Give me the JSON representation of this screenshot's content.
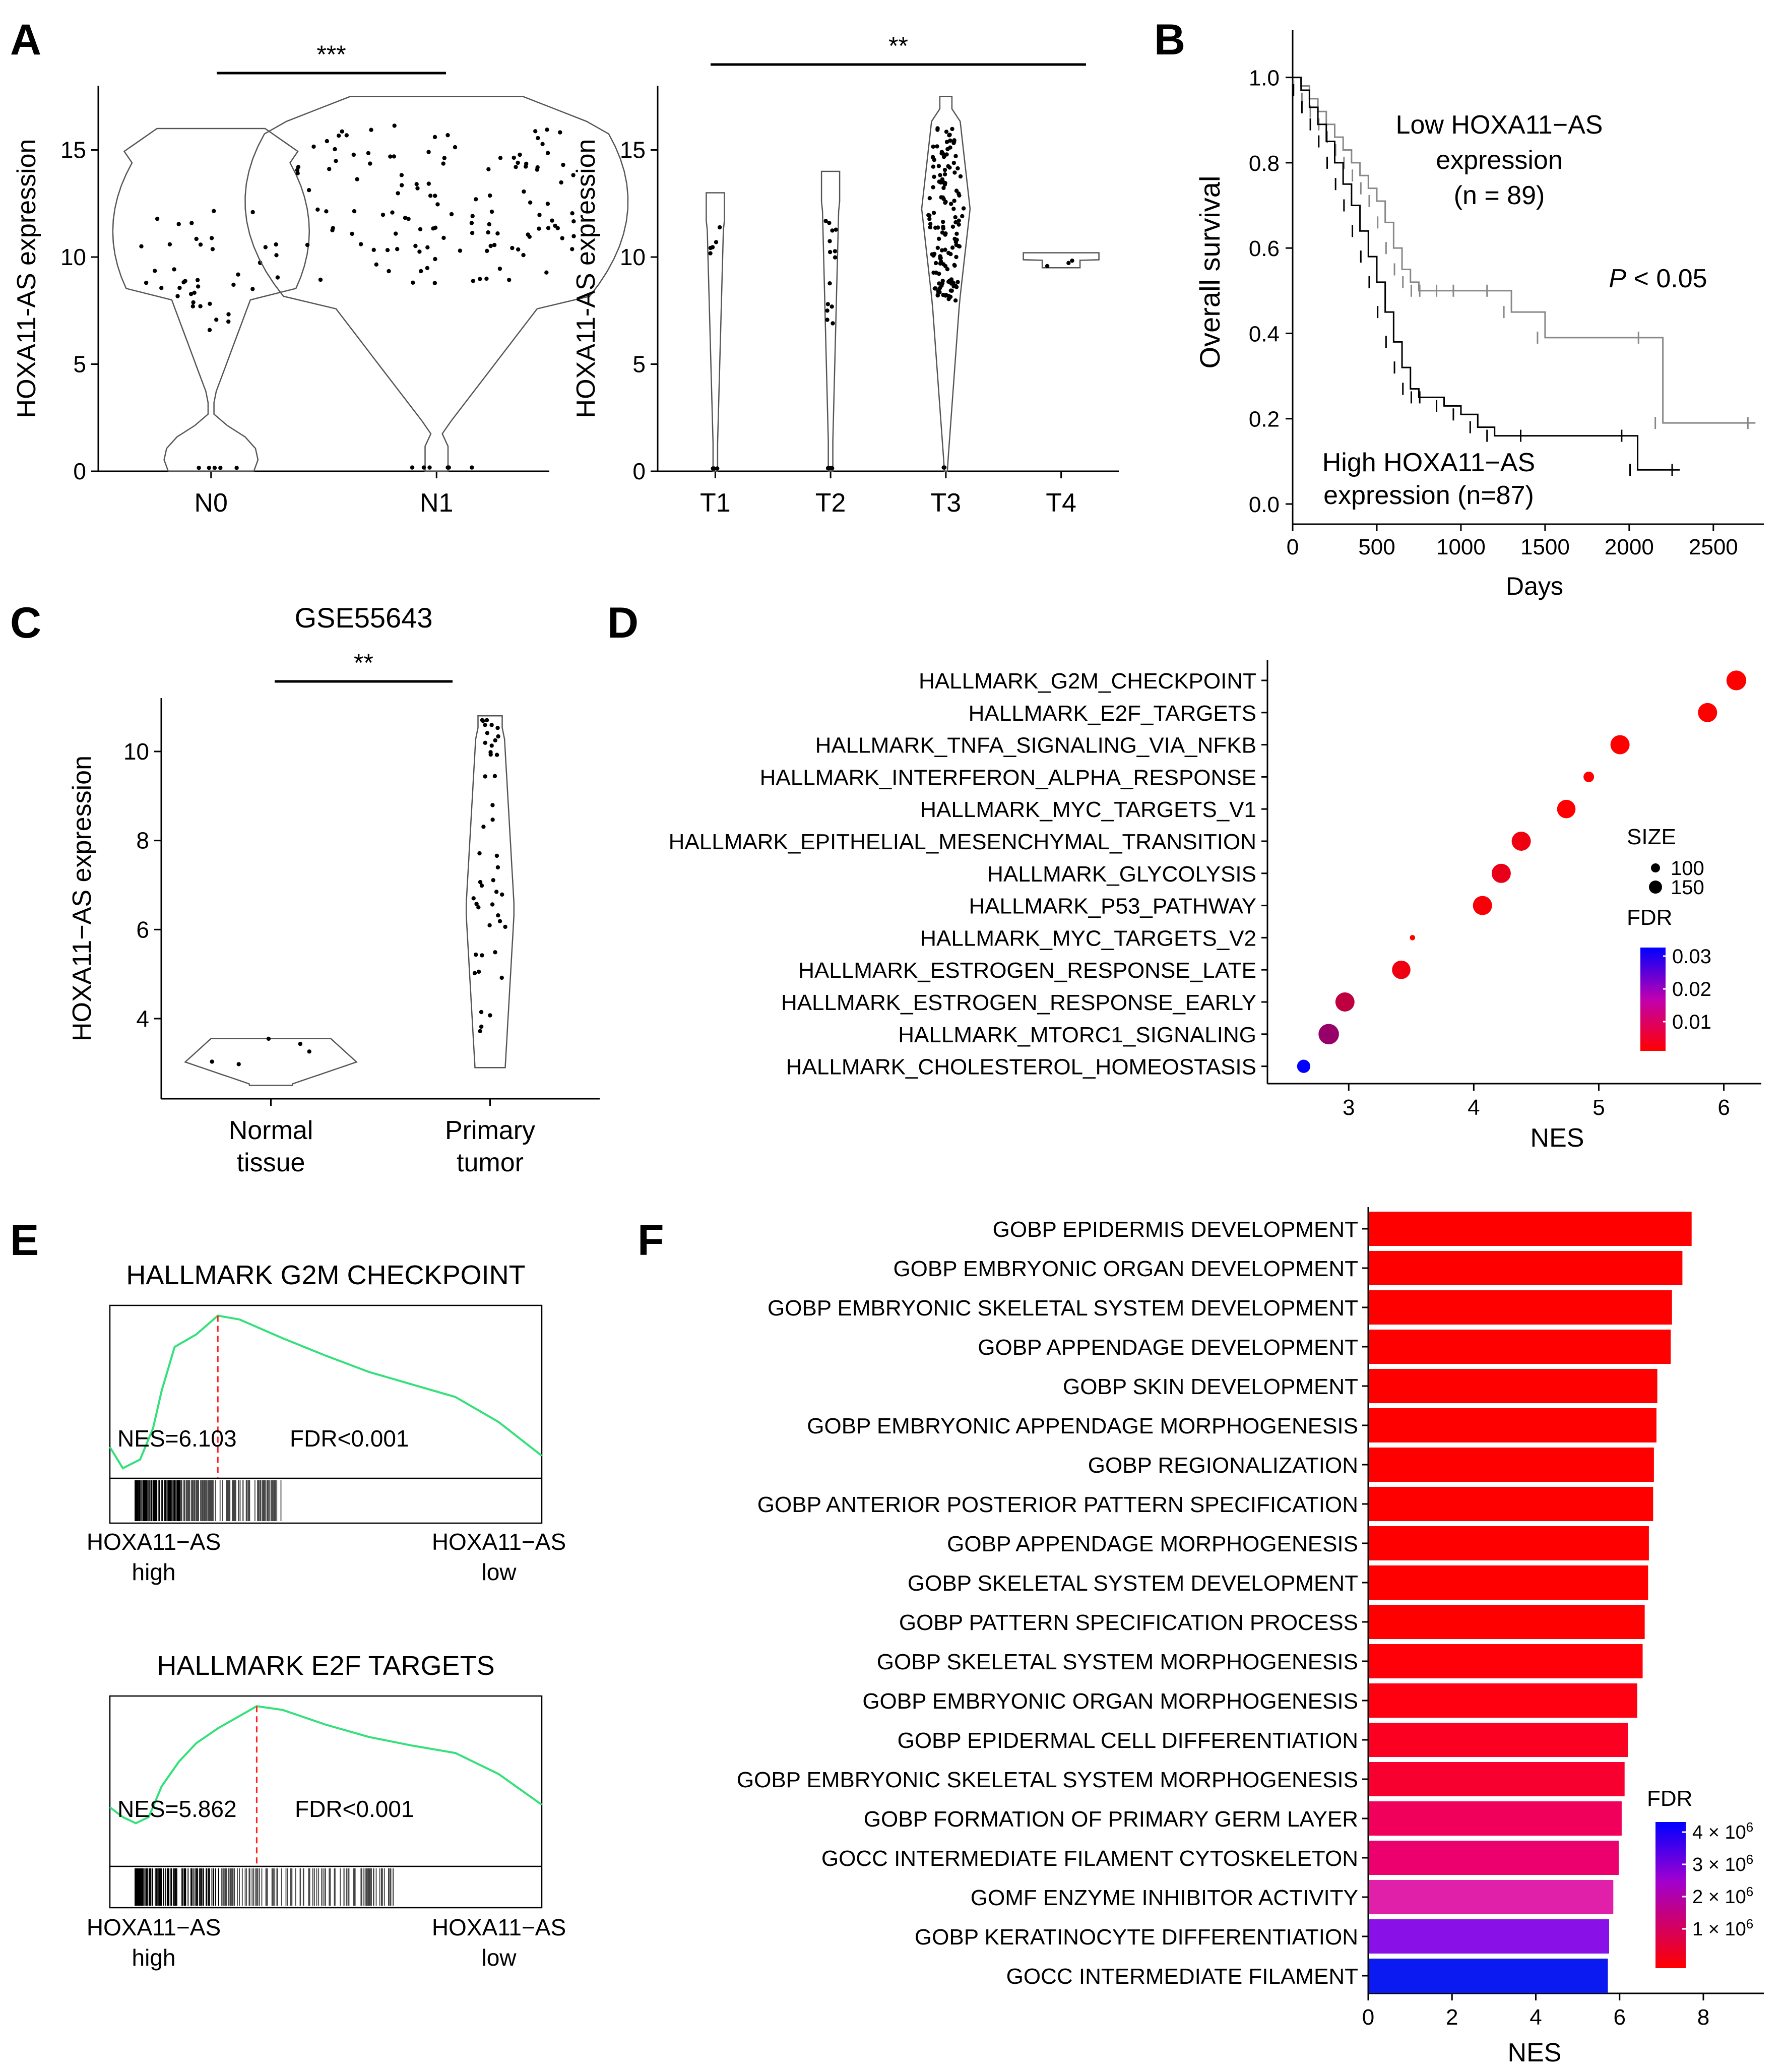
{
  "panel_letters": {
    "A": "A",
    "B": "B",
    "C": "C",
    "D": "D",
    "E": "E",
    "F": "F"
  },
  "chart_data": [
    {
      "id": "A1",
      "type": "violin",
      "ylabel": "HOXA11-AS  expression",
      "categories": [
        "N0",
        "N1"
      ],
      "yticks": [
        "0",
        "5",
        "10",
        "15"
      ],
      "ylim": [
        0,
        18
      ],
      "significance": "***",
      "groups": [
        {
          "name": "N0",
          "min": 0,
          "max": 16,
          "n_points": 45
        },
        {
          "name": "N1",
          "min": 0,
          "max": 17.5,
          "n_points": 130
        }
      ]
    },
    {
      "id": "A2",
      "type": "violin",
      "ylabel": "HOXA11-AS  expression",
      "categories": [
        "T1",
        "T2",
        "T3",
        "T4"
      ],
      "yticks": [
        "0",
        "5",
        "10",
        "15"
      ],
      "ylim": [
        0,
        18
      ],
      "significance": "**",
      "groups": [
        {
          "name": "T1",
          "min": 0,
          "max": 13,
          "n_points": 8
        },
        {
          "name": "T2",
          "min": 0,
          "max": 14,
          "n_points": 24
        },
        {
          "name": "T3",
          "min": 0,
          "max": 17.5,
          "n_points": 140
        },
        {
          "name": "T4",
          "min": 9.5,
          "max": 10.2,
          "n_points": 3
        }
      ]
    },
    {
      "id": "B",
      "type": "line",
      "subtype": "kaplan-meier",
      "xlabel": "Days",
      "ylabel": "Overall survival",
      "xticks": [
        "0",
        "500",
        "1000",
        "1500",
        "2000",
        "2500"
      ],
      "yticks": [
        "0.0",
        "0.2",
        "0.4",
        "0.6",
        "0.8",
        "1.0"
      ],
      "xlim": [
        0,
        2800
      ],
      "ylim": [
        0,
        1
      ],
      "series": [
        {
          "name": "Low HOXA11-AS expression (n = 89)",
          "label_lines": [
            "Low HOXA11−AS",
            "expression",
            "(n = 89)"
          ],
          "color": "#888888",
          "x": [
            0,
            50,
            100,
            150,
            200,
            250,
            300,
            350,
            400,
            450,
            500,
            550,
            600,
            650,
            700,
            750,
            800,
            900,
            1000,
            1200,
            1300,
            1500,
            2100,
            2200,
            2750
          ],
          "y": [
            1.0,
            0.98,
            0.95,
            0.92,
            0.89,
            0.86,
            0.83,
            0.8,
            0.77,
            0.74,
            0.71,
            0.66,
            0.6,
            0.55,
            0.52,
            0.5,
            0.5,
            0.5,
            0.5,
            0.5,
            0.45,
            0.39,
            0.39,
            0.19,
            0.19
          ]
        },
        {
          "name": "High HOXA11-AS expression (n=87)",
          "label_lines": [
            "High HOXA11−AS",
            "expression (n=87)"
          ],
          "color": "#000000",
          "x": [
            0,
            50,
            100,
            150,
            200,
            250,
            300,
            350,
            400,
            450,
            500,
            550,
            600,
            650,
            700,
            750,
            800,
            900,
            1000,
            1100,
            1200,
            1400,
            2000,
            2050,
            2300
          ],
          "y": [
            1.0,
            0.97,
            0.93,
            0.89,
            0.85,
            0.8,
            0.75,
            0.7,
            0.64,
            0.58,
            0.52,
            0.45,
            0.38,
            0.32,
            0.27,
            0.25,
            0.25,
            0.23,
            0.21,
            0.18,
            0.16,
            0.16,
            0.16,
            0.08,
            0.08
          ]
        }
      ],
      "annotation": {
        "italic": "P",
        "rest": " < 0.05"
      }
    },
    {
      "id": "C",
      "type": "violin",
      "title": "GSE55643",
      "ylabel": "HOXA11−AS  expression",
      "categories": [
        [
          "Normal",
          "tissue"
        ],
        [
          "Primary",
          "tumor"
        ]
      ],
      "yticks": [
        "4",
        "6",
        "8",
        "10"
      ],
      "ylim": [
        2.2,
        11.2
      ],
      "significance": "**",
      "groups": [
        {
          "name": "Normal tissue",
          "min": 2.5,
          "max": 3.55,
          "n_points": 5
        },
        {
          "name": "Primary tumor",
          "min": 2.9,
          "max": 10.8,
          "n_points": 45
        }
      ]
    },
    {
      "id": "D",
      "type": "scatter",
      "subtype": "dot-plot",
      "xlabel": "NES",
      "ylabel": "",
      "xticks": [
        "3",
        "4",
        "5",
        "6"
      ],
      "xlim": [
        2.35,
        6.3
      ],
      "categories": [
        "HALLMARK_G2M_CHECKPOINT",
        "HALLMARK_E2F_TARGETS",
        "HALLMARK_TNFA_SIGNALING_VIA_NFKB",
        "HALLMARK_INTERFERON_ALPHA_RESPONSE",
        "HALLMARK_MYC_TARGETS_V1",
        "HALLMARK_EPITHELIAL_MESENCHYMAL_TRANSITION",
        "HALLMARK_GLYCOLYSIS",
        "HALLMARK_P53_PATHWAY",
        "HALLMARK_MYC_TARGETS_V2",
        "HALLMARK_ESTROGEN_RESPONSE_LATE",
        "HALLMARK_ESTROGEN_RESPONSE_EARLY",
        "HALLMARK_MTORC1_SIGNALING",
        "HALLMARK_CHOLESTEROL_HOMEOSTASIS"
      ],
      "nes": [
        6.1,
        5.87,
        5.17,
        4.92,
        4.74,
        4.38,
        4.22,
        4.07,
        3.51,
        3.42,
        2.97,
        2.84,
        2.64
      ],
      "size": [
        170,
        165,
        165,
        100,
        160,
        165,
        165,
        165,
        60,
        160,
        165,
        175,
        120
      ],
      "fdr": [
        0.001,
        0.001,
        0.001,
        0.001,
        0.001,
        0.003,
        0.004,
        0.002,
        0.001,
        0.003,
        0.009,
        0.014,
        0.033
      ],
      "size_legend": {
        "title": "SIZE",
        "labels": [
          "100",
          "150"
        ]
      },
      "fdr_legend": {
        "title": "FDR",
        "labels": [
          "0.03",
          "0.02",
          "0.01"
        ],
        "colors": [
          "#0000ff",
          "#ff0000"
        ]
      }
    },
    {
      "id": "E1",
      "type": "line",
      "subtype": "gsea-enrichment",
      "title": "HALLMARK G2M CHECKPOINT",
      "nes_label": "NES=6.103",
      "fdr_label": "FDR<0.001",
      "left_label": [
        "HOXA11−AS",
        "high"
      ],
      "right_label": [
        "HOXA11−AS",
        "low"
      ],
      "color": "#33e07a",
      "x": [
        0,
        0.03,
        0.07,
        0.1,
        0.12,
        0.15,
        0.2,
        0.25,
        0.3,
        0.4,
        0.5,
        0.6,
        0.7,
        0.8,
        0.9,
        1.0
      ],
      "y": [
        -0.05,
        -0.22,
        -0.15,
        0.1,
        0.4,
        0.75,
        0.85,
        1.0,
        0.97,
        0.82,
        0.68,
        0.55,
        0.45,
        0.35,
        0.15,
        -0.12
      ],
      "peak_x": 0.25
    },
    {
      "id": "E2",
      "type": "line",
      "subtype": "gsea-enrichment",
      "title": "HALLMARK E2F TARGETS",
      "nes_label": "NES=5.862",
      "fdr_label": "FDR<0.001",
      "left_label": [
        "HOXA11−AS",
        "high"
      ],
      "right_label": [
        "HOXA11−AS",
        "low"
      ],
      "color": "#33e07a",
      "x": [
        0,
        0.03,
        0.06,
        0.09,
        0.12,
        0.16,
        0.2,
        0.25,
        0.3,
        0.34,
        0.4,
        0.5,
        0.6,
        0.7,
        0.8,
        0.9,
        1.0
      ],
      "y": [
        0.18,
        0.1,
        0.05,
        0.1,
        0.35,
        0.55,
        0.7,
        0.82,
        0.92,
        1.0,
        0.97,
        0.85,
        0.75,
        0.68,
        0.62,
        0.45,
        0.2
      ],
      "peak_x": 0.34
    },
    {
      "id": "F",
      "type": "bar",
      "orientation": "horizontal",
      "xlabel": "NES",
      "xticks": [
        "0",
        "2",
        "4",
        "6",
        "8"
      ],
      "xlim": [
        0,
        8
      ],
      "categories": [
        "GOBP EPIDERMIS DEVELOPMENT",
        "GOBP EMBRYONIC ORGAN DEVELOPMENT",
        "GOBP EMBRYONIC SKELETAL SYSTEM DEVELOPMENT",
        "GOBP APPENDAGE DEVELOPMENT",
        "GOBP SKIN DEVELOPMENT",
        "GOBP EMBRYONIC APPENDAGE MORPHOGENESIS",
        "GOBP REGIONALIZATION",
        "GOBP ANTERIOR POSTERIOR PATTERN SPECIFICATION",
        "GOBP APPENDAGE MORPHOGENESIS",
        "GOBP SKELETAL SYSTEM DEVELOPMENT",
        "GOBP PATTERN SPECIFICATION PROCESS",
        "GOBP SKELETAL SYSTEM MORPHOGENESIS",
        "GOBP EMBRYONIC ORGAN MORPHOGENESIS",
        "GOBP EPIDERMAL CELL DIFFERENTIATION",
        "GOBP EMBRYONIC SKELETAL SYSTEM MORPHOGENESIS",
        "GOBP FORMATION OF PRIMARY GERM LAYER",
        "GOCC INTERMEDIATE FILAMENT CYTOSKELETON",
        "GOMF ENZYME INHIBITOR ACTIVITY",
        "GOBP KERATINOCYTE DIFFERENTIATION",
        "GOCC INTERMEDIATE FILAMENT"
      ],
      "values": [
        7.72,
        7.5,
        7.25,
        7.22,
        6.9,
        6.88,
        6.82,
        6.8,
        6.7,
        6.68,
        6.6,
        6.55,
        6.42,
        6.2,
        6.12,
        6.05,
        5.98,
        5.85,
        5.75,
        5.72
      ],
      "fdr_label": "FDR",
      "fdr_colors": [
        "#ff0000",
        "#ff0000",
        "#ff0000",
        "#ff0000",
        "#ff0000",
        "#ff0000",
        "#ff0000",
        "#ff0000",
        "#ff0000",
        "#ff0000",
        "#ff0000",
        "#ff0008",
        "#ff0010",
        "#fb0020",
        "#f70030",
        "#f0005a",
        "#ec006e",
        "#e020a8",
        "#8a10e8",
        "#0a1af0"
      ],
      "fdr_legend": {
        "ticks": [
          {
            "base": "4 × 10",
            "exp": "6"
          },
          {
            "base": "3 × 10",
            "exp": "6"
          },
          {
            "base": "2 × 10",
            "exp": "6"
          },
          {
            "base": "1 × 10",
            "exp": "6"
          }
        ]
      }
    }
  ]
}
